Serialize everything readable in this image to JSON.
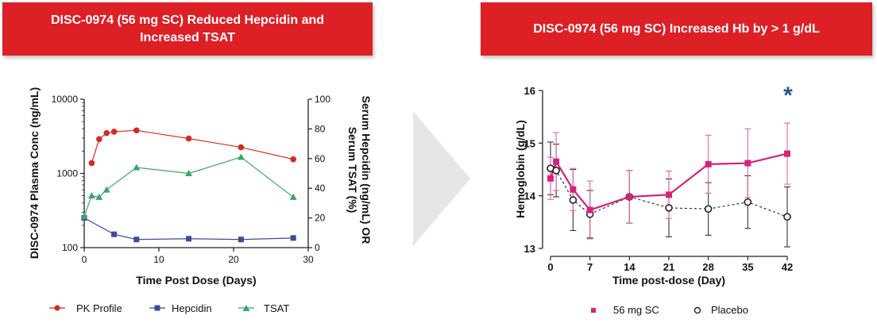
{
  "left_panel": {
    "title_line1": "DISC-0974 (56 mg SC) Reduced Hepcidin and",
    "title_line2": "Increased TSAT"
  },
  "right_panel": {
    "title": "DISC-0974 (56 mg SC) Increased Hb by > 1 g/dL"
  },
  "colors": {
    "banner": "#dd1f26",
    "pk": "#d42a24",
    "hepcidin": "#3d4aa0",
    "tsat": "#3aa66b",
    "sc56": "#d4237a",
    "placebo": "#222222",
    "asterisk": "#1f5a8c"
  },
  "chart_data": [
    {
      "type": "line",
      "title": "",
      "xlabel": "Time Post Dose (Days)",
      "ylabel_left": "DISC-0974 Plasma Conc (ng/mL)",
      "ylabel_right": "Serum Hepcidin (ng/mL) OR Serum TSAT (%)",
      "ylabel_right_line1": "Serum Hepcidin (ng/mL) OR",
      "ylabel_right_line2": "Serum  TSAT (%)",
      "xlim": [
        0,
        30
      ],
      "xticks": [
        "0",
        "10",
        "20",
        "30"
      ],
      "ylim_left_log": [
        100,
        10000
      ],
      "yticks_left": [
        "100",
        "1000",
        "10000"
      ],
      "ylim_right": [
        0,
        100
      ],
      "yticks_right": [
        "0",
        "20",
        "40",
        "60",
        "80",
        "100"
      ],
      "legend": [
        "PK Profile",
        "Hepcidin",
        "TSAT"
      ],
      "series": [
        {
          "name": "PK Profile",
          "axis": "left-log",
          "marker": "circle",
          "x": [
            1,
            2,
            3,
            4,
            7,
            14,
            21,
            28
          ],
          "values": [
            1380,
            2900,
            3500,
            3650,
            3800,
            2950,
            2250,
            1550
          ]
        },
        {
          "name": "Hepcidin",
          "axis": "right",
          "marker": "square",
          "x": [
            0,
            4,
            7,
            14,
            21,
            28
          ],
          "values": [
            20,
            9,
            5.5,
            6,
            5.5,
            6.5
          ]
        },
        {
          "name": "TSAT",
          "axis": "right",
          "marker": "triangle",
          "x": [
            0,
            1,
            2,
            3,
            7,
            14,
            21,
            28
          ],
          "values": [
            21,
            35,
            34,
            39,
            54,
            50,
            61,
            34
          ]
        }
      ]
    },
    {
      "type": "line",
      "title": "",
      "xlabel": "Time post-dose (Day)",
      "ylabel": "Hemoglobin (g/dL)",
      "xlim": [
        0,
        42
      ],
      "xticks": [
        "0",
        "7",
        "14",
        "21",
        "28",
        "35",
        "42"
      ],
      "ylim": [
        13,
        16
      ],
      "yticks": [
        "13",
        "14",
        "15",
        "16"
      ],
      "legend": [
        "56 mg SC",
        "Placebo"
      ],
      "annotation": "*",
      "series": [
        {
          "name": "56 mg SC",
          "marker": "square",
          "x": [
            0,
            1,
            4,
            7,
            14,
            21,
            28,
            35,
            42
          ],
          "values": [
            14.33,
            14.65,
            14.12,
            13.73,
            13.98,
            14.02,
            14.6,
            14.62,
            14.8
          ],
          "errors": [
            0.4,
            0.55,
            0.4,
            0.55,
            0.5,
            0.45,
            0.55,
            0.65,
            0.58
          ]
        },
        {
          "name": "Placebo",
          "marker": "circle-open",
          "x": [
            0,
            1,
            4,
            7,
            14,
            21,
            28,
            35,
            42
          ],
          "values": [
            14.52,
            14.48,
            13.92,
            13.65,
            13.98,
            13.77,
            13.75,
            13.88,
            13.6
          ],
          "errors": [
            0.5,
            0.5,
            0.58,
            0.45,
            0.5,
            0.55,
            0.5,
            0.5,
            0.57
          ]
        }
      ]
    }
  ]
}
